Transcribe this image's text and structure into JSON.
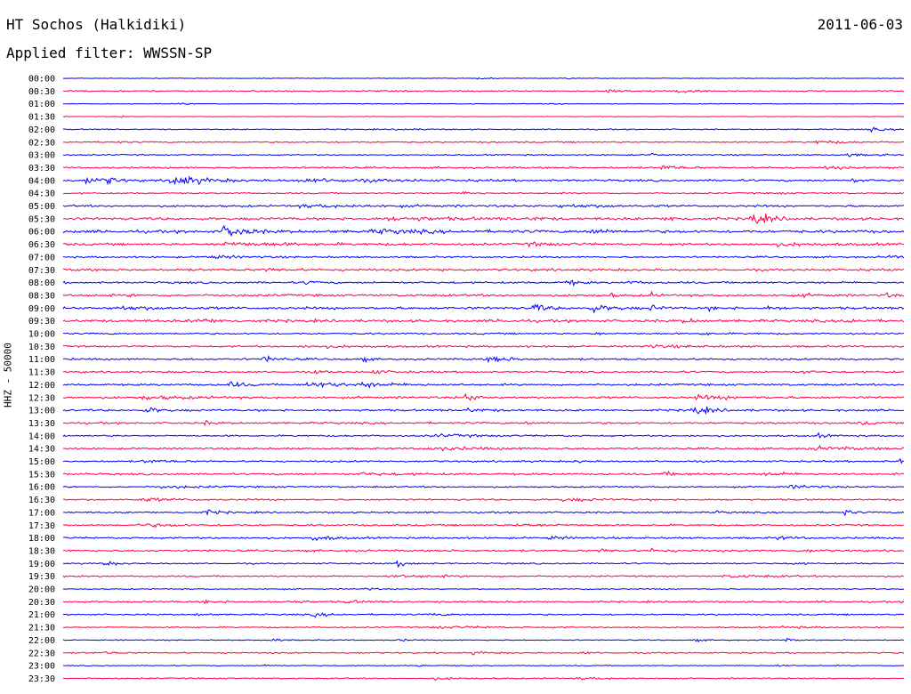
{
  "header": {
    "station": "HT Sochos (Halkidiki)",
    "date": "2011-06-03",
    "filter": "Applied filter: WWSSN-SP"
  },
  "channel_label": "HHZ - 50000",
  "colors": {
    "odd_trace": "#0000ff",
    "even_trace": "#ff0040",
    "label": "#000000"
  },
  "chart_data": {
    "type": "line",
    "title": "HT Sochos (Halkidiki)",
    "subtitle": "Applied filter: WWSSN-SP",
    "ylabel": "HHZ - 50000",
    "xlabel": "",
    "row_labels": [
      "00:00",
      "00:30",
      "01:00",
      "01:30",
      "02:00",
      "02:30",
      "03:00",
      "03:30",
      "04:00",
      "04:30",
      "05:00",
      "05:30",
      "06:00",
      "06:30",
      "07:00",
      "07:30",
      "08:00",
      "08:30",
      "09:00",
      "09:30",
      "10:00",
      "10:30",
      "11:00",
      "11:30",
      "12:00",
      "12:30",
      "13:00",
      "13:30",
      "14:00",
      "14:30",
      "15:00",
      "15:30",
      "16:00",
      "16:30",
      "17:00",
      "17:30",
      "18:00",
      "18:30",
      "19:00",
      "19:30",
      "20:00",
      "20:30",
      "21:00",
      "21:30",
      "22:00",
      "22:30",
      "23:00",
      "23:30"
    ],
    "series_colors": [
      "blue",
      "red"
    ],
    "grid": false,
    "legend": "none",
    "traces": [
      {
        "label": "00:00",
        "noise": 0.5,
        "events": [
          [
            0.495,
            1.2,
            0.01
          ],
          [
            0.6,
            1.0,
            0.01
          ]
        ]
      },
      {
        "label": "00:30",
        "noise": 1.2,
        "events": [
          [
            0.65,
            1.6,
            0.02
          ],
          [
            0.73,
            1.8,
            0.02
          ],
          [
            0.27,
            0.9,
            0.01
          ]
        ]
      },
      {
        "label": "01:00",
        "noise": 0.6,
        "events": [
          [
            0.14,
            1.2,
            0.01
          ],
          [
            0.58,
            1.0,
            0.01
          ]
        ]
      },
      {
        "label": "01:30",
        "noise": 0.5,
        "events": [
          [
            0.07,
            0.9,
            0.005
          ]
        ]
      },
      {
        "label": "02:00",
        "noise": 1.0,
        "events": [
          [
            0.96,
            1.8,
            0.015
          ],
          [
            0.4,
            1.0,
            0.02
          ]
        ]
      },
      {
        "label": "02:30",
        "noise": 1.3,
        "events": [
          [
            0.9,
            1.8,
            0.02
          ],
          [
            0.06,
            1.0,
            0.01
          ]
        ]
      },
      {
        "label": "03:00",
        "noise": 1.1,
        "events": [
          [
            0.7,
            2.8,
            0.005
          ],
          [
            0.935,
            2.0,
            0.01
          ],
          [
            0.97,
            1.6,
            0.005
          ]
        ]
      },
      {
        "label": "03:30",
        "noise": 1.5,
        "events": [
          [
            0.715,
            3.0,
            0.015
          ],
          [
            0.91,
            1.8,
            0.015
          ],
          [
            0.985,
            1.4,
            0.01
          ]
        ]
      },
      {
        "label": "04:00",
        "noise": 1.8,
        "events": [
          [
            0.03,
            4.5,
            0.015
          ],
          [
            0.055,
            3.5,
            0.01
          ],
          [
            0.135,
            6.0,
            0.03
          ],
          [
            0.3,
            1.4,
            0.1
          ],
          [
            0.94,
            1.6,
            0.01
          ]
        ]
      },
      {
        "label": "04:30",
        "noise": 1.3,
        "events": [
          [
            0.85,
            2.0,
            0.005
          ],
          [
            0.48,
            1.3,
            0.02
          ]
        ]
      },
      {
        "label": "05:00",
        "noise": 1.8,
        "events": [
          [
            0.6,
            1.4,
            0.05
          ],
          [
            0.3,
            1.2,
            0.08
          ]
        ]
      },
      {
        "label": "05:30",
        "noise": 2.3,
        "events": [
          [
            0.82,
            6.5,
            0.018
          ],
          [
            0.72,
            2.5,
            0.015
          ],
          [
            0.4,
            1.6,
            0.06
          ],
          [
            0.56,
            1.8,
            0.01
          ]
        ]
      },
      {
        "label": "06:00",
        "noise": 2.5,
        "events": [
          [
            0.195,
            6.5,
            0.02
          ],
          [
            0.63,
            2.8,
            0.015
          ],
          [
            0.38,
            1.8,
            0.05
          ]
        ]
      },
      {
        "label": "06:30",
        "noise": 2.0,
        "events": [
          [
            0.2,
            1.8,
            0.08
          ],
          [
            0.56,
            1.4,
            0.04
          ],
          [
            0.86,
            1.4,
            0.06
          ]
        ]
      },
      {
        "label": "07:00",
        "noise": 1.5,
        "events": [
          [
            0.985,
            3.0,
            0.008
          ],
          [
            0.18,
            1.3,
            0.04
          ]
        ]
      },
      {
        "label": "07:30",
        "noise": 2.0,
        "events": [
          [
            0.45,
            3.0,
            0.005
          ],
          [
            0.24,
            1.4,
            0.02
          ]
        ]
      },
      {
        "label": "08:00",
        "noise": 1.8,
        "events": [
          [
            0.6,
            4.0,
            0.008
          ],
          [
            0.29,
            2.0,
            0.01
          ],
          [
            0.675,
            1.6,
            0.01
          ]
        ]
      },
      {
        "label": "08:30",
        "noise": 2.0,
        "events": [
          [
            0.65,
            4.0,
            0.004
          ],
          [
            0.7,
            4.0,
            0.004
          ],
          [
            0.88,
            2.0,
            0.008
          ],
          [
            0.08,
            1.8,
            0.004
          ],
          [
            0.98,
            1.8,
            0.01
          ]
        ]
      },
      {
        "label": "09:00",
        "noise": 2.2,
        "events": [
          [
            0.56,
            4.5,
            0.012
          ],
          [
            0.63,
            3.5,
            0.02
          ],
          [
            0.7,
            3.5,
            0.008
          ],
          [
            0.77,
            2.5,
            0.006
          ],
          [
            0.84,
            2.0,
            0.008
          ],
          [
            0.07,
            1.8,
            0.04
          ]
        ]
      },
      {
        "label": "09:30",
        "noise": 2.3,
        "events": [
          [
            0.74,
            2.5,
            0.01
          ],
          [
            0.93,
            3.0,
            0.012
          ],
          [
            0.16,
            1.6,
            0.04
          ],
          [
            0.52,
            1.6,
            0.01
          ]
        ]
      },
      {
        "label": "10:00",
        "noise": 1.5,
        "events": [
          [
            0.63,
            1.6,
            0.01
          ],
          [
            0.76,
            1.4,
            0.01
          ]
        ]
      },
      {
        "label": "10:30",
        "noise": 1.6,
        "events": [
          [
            0.3,
            1.2,
            0.05
          ],
          [
            0.7,
            1.2,
            0.05
          ]
        ]
      },
      {
        "label": "11:00",
        "noise": 1.7,
        "events": [
          [
            0.24,
            3.0,
            0.015
          ],
          [
            0.355,
            3.5,
            0.005
          ],
          [
            0.51,
            3.0,
            0.02
          ],
          [
            0.92,
            1.6,
            0.01
          ]
        ]
      },
      {
        "label": "11:30",
        "noise": 1.6,
        "events": [
          [
            0.3,
            2.0,
            0.008
          ],
          [
            0.37,
            1.8,
            0.02
          ],
          [
            0.88,
            2.0,
            0.01
          ]
        ]
      },
      {
        "label": "12:00",
        "noise": 1.7,
        "events": [
          [
            0.2,
            3.0,
            0.015
          ],
          [
            0.3,
            2.6,
            0.04
          ],
          [
            0.36,
            1.8,
            0.03
          ]
        ]
      },
      {
        "label": "12:30",
        "noise": 2.0,
        "events": [
          [
            0.48,
            4.0,
            0.012
          ],
          [
            0.1,
            1.4,
            0.05
          ],
          [
            0.76,
            1.6,
            0.04
          ]
        ]
      },
      {
        "label": "13:00",
        "noise": 1.8,
        "events": [
          [
            0.1,
            3.5,
            0.012
          ],
          [
            0.75,
            4.5,
            0.018
          ],
          [
            0.48,
            1.8,
            0.02
          ]
        ]
      },
      {
        "label": "13:30",
        "noise": 1.7,
        "events": [
          [
            0.17,
            2.0,
            0.008
          ],
          [
            0.55,
            1.8,
            0.008
          ],
          [
            0.95,
            1.6,
            0.01
          ]
        ]
      },
      {
        "label": "14:00",
        "noise": 1.5,
        "events": [
          [
            0.9,
            1.8,
            0.012
          ],
          [
            0.45,
            1.2,
            0.05
          ]
        ]
      },
      {
        "label": "14:30",
        "noise": 1.6,
        "events": [
          [
            0.45,
            1.5,
            0.06
          ],
          [
            0.9,
            1.5,
            0.05
          ]
        ]
      },
      {
        "label": "15:00",
        "noise": 1.6,
        "events": [
          [
            0.995,
            2.5,
            0.004
          ],
          [
            0.1,
            1.6,
            0.02
          ],
          [
            0.61,
            1.4,
            0.01
          ]
        ]
      },
      {
        "label": "15:30",
        "noise": 1.7,
        "events": [
          [
            0.84,
            2.0,
            0.02
          ],
          [
            0.36,
            1.4,
            0.04
          ],
          [
            0.72,
            1.4,
            0.03
          ]
        ]
      },
      {
        "label": "16:00",
        "noise": 1.4,
        "events": [
          [
            0.87,
            2.2,
            0.02
          ],
          [
            0.12,
            1.3,
            0.04
          ]
        ]
      },
      {
        "label": "16:30",
        "noise": 1.5,
        "events": [
          [
            0.1,
            1.4,
            0.04
          ],
          [
            0.6,
            1.4,
            0.04
          ]
        ]
      },
      {
        "label": "17:00",
        "noise": 1.4,
        "events": [
          [
            0.17,
            2.8,
            0.015
          ],
          [
            0.93,
            3.2,
            0.008
          ],
          [
            0.78,
            1.4,
            0.01
          ]
        ]
      },
      {
        "label": "17:30",
        "noise": 1.5,
        "events": [
          [
            0.1,
            1.4,
            0.04
          ],
          [
            0.55,
            1.4,
            0.04
          ]
        ]
      },
      {
        "label": "18:00",
        "noise": 1.6,
        "events": [
          [
            0.3,
            2.8,
            0.02
          ],
          [
            0.58,
            1.4,
            0.02
          ],
          [
            0.85,
            1.4,
            0.02
          ]
        ]
      },
      {
        "label": "18:30",
        "noise": 1.7,
        "events": [
          [
            0.64,
            1.6,
            0.015
          ],
          [
            0.7,
            1.6,
            0.015
          ],
          [
            0.88,
            1.4,
            0.02
          ]
        ]
      },
      {
        "label": "19:00",
        "noise": 1.3,
        "events": [
          [
            0.4,
            3.2,
            0.012
          ],
          [
            0.05,
            1.6,
            0.02
          ],
          [
            0.87,
            1.8,
            0.008
          ]
        ]
      },
      {
        "label": "19:30",
        "noise": 1.3,
        "events": [
          [
            0.4,
            1.2,
            0.06
          ],
          [
            0.8,
            1.2,
            0.06
          ]
        ]
      },
      {
        "label": "20:00",
        "noise": 1.0,
        "events": [
          [
            0.36,
            1.4,
            0.01
          ],
          [
            0.62,
            1.2,
            0.01
          ]
        ]
      },
      {
        "label": "20:30",
        "noise": 1.5,
        "events": [
          [
            0.17,
            1.8,
            0.015
          ],
          [
            0.27,
            1.6,
            0.015
          ],
          [
            0.34,
            1.6,
            0.015
          ]
        ]
      },
      {
        "label": "21:00",
        "noise": 1.3,
        "events": [
          [
            0.3,
            1.6,
            0.02
          ],
          [
            0.44,
            1.4,
            0.02
          ],
          [
            0.16,
            1.4,
            0.01
          ]
        ]
      },
      {
        "label": "21:30",
        "noise": 1.2,
        "events": [
          [
            0.45,
            1.2,
            0.05
          ],
          [
            0.86,
            1.3,
            0.02
          ]
        ]
      },
      {
        "label": "22:00",
        "noise": 0.9,
        "events": [
          [
            0.25,
            1.8,
            0.01
          ],
          [
            0.4,
            1.6,
            0.008
          ],
          [
            0.75,
            1.8,
            0.008
          ],
          [
            0.86,
            1.6,
            0.008
          ]
        ]
      },
      {
        "label": "22:30",
        "noise": 1.2,
        "events": [
          [
            0.05,
            1.2,
            0.01
          ],
          [
            0.49,
            1.6,
            0.015
          ],
          [
            0.62,
            1.4,
            0.01
          ]
        ]
      },
      {
        "label": "23:00",
        "noise": 0.8,
        "events": [
          [
            0.24,
            1.3,
            0.01
          ],
          [
            0.42,
            1.2,
            0.01
          ],
          [
            0.85,
            1.2,
            0.01
          ]
        ]
      },
      {
        "label": "23:30",
        "noise": 1.1,
        "events": [
          [
            0.44,
            1.2,
            0.04
          ],
          [
            0.62,
            1.2,
            0.03
          ]
        ]
      }
    ]
  }
}
